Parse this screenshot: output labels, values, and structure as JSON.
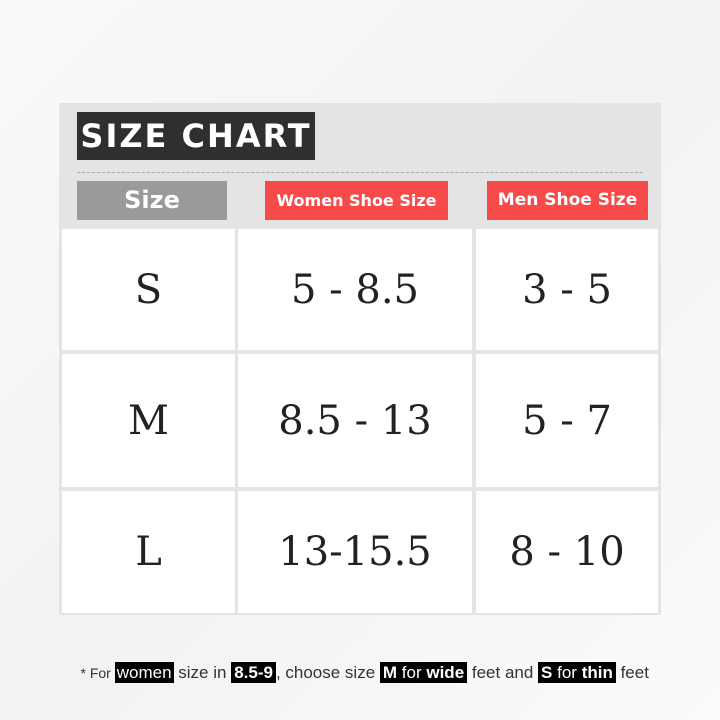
{
  "title": "SIZE CHART",
  "headers": [
    "Size",
    "Women Shoe Size",
    "Men Shoe Size"
  ],
  "rows": [
    {
      "size": "S",
      "women": "5 - 8.5",
      "men": "3 - 5"
    },
    {
      "size": "M",
      "women": "8.5 - 13",
      "men": "5 - 7"
    },
    {
      "size": "L",
      "women": "13-15.5",
      "men": "8 - 10"
    }
  ],
  "footnote": {
    "t1": "* For ",
    "h1": "women",
    "t2": " size in ",
    "h2": "8.5-9",
    "t3": ", choose size ",
    "h3a": "M",
    "h3b": " for ",
    "h3c": "wide",
    "t4": " feet and ",
    "h4a": "S",
    "h4b": " for ",
    "h4c": "thin",
    "t5": " feet"
  },
  "colors": {
    "accent": "#f74b4b",
    "title_bg": "#2f2f2f",
    "size_header": "#9a9a9a",
    "panel": "#e4e4e4"
  }
}
